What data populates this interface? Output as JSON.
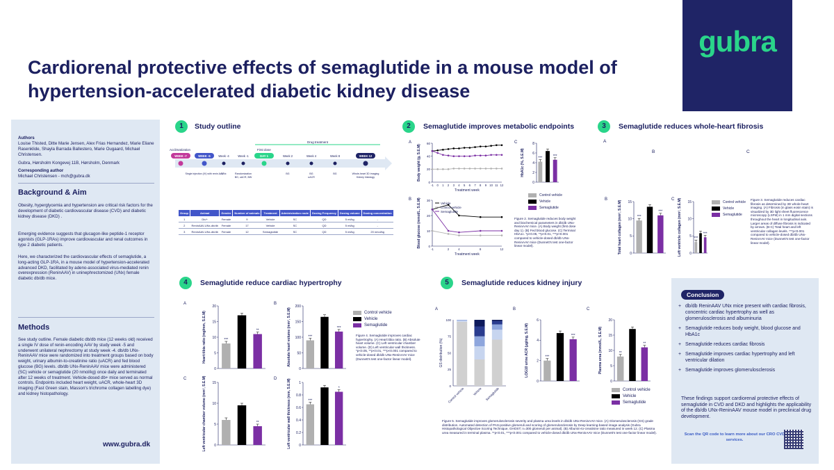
{
  "poster": {
    "title_line1": "Cardiorenal protective effects of semaglutide in a mouse model of",
    "title_line2": "hypertension-accelerated diabetic kidney disease",
    "logo": "gubra",
    "url": "www.gubra.dk"
  },
  "sidebar": {
    "authors_heading": "Authors",
    "authors": "Louise Thisted, Ditte Marie Jensen, Alex Frias Hernandez, Marie Eliane Rasenklide, Shayla Barrada Ballestero, Marie Ougaard, Michael Christensen.",
    "affiliation": "Gubra, Hørsholm Kongevej 11B, Hørsholm, Denmark",
    "corresponding_heading": "Corresponding author",
    "corresponding": "Michael Christensen - mch@gubra.dk",
    "background_heading": "Background & Aim",
    "background_p1": "Obesity, hyperglycemia and hypertension are critical risk factors for the development of diabetic cardiovascular disease (CVD) and diabetic kidney disease (DKD) .",
    "background_p2": "Emerging evidence suggests that glucagon-like peptide-1 receptor agonists (GLP-1RAs) improve cardiovascular and renal outcomes in type 2 diabetic patients.",
    "background_p3": "Here, we characterized the cardiovascular effects of semaglutide, a long-acting GLP-1RA, in a mouse model of hypertension-accelerated advanced DKD, facilitated by adeno-associated virus-mediated renin overexpression (ReninAAV) in uninephrectomized (UNx) female diabetic db/db mice.",
    "methods_heading": "Methods",
    "methods_p": "See study outline. Female diabetic db/db mice (12 weeks old) received a single IV dose of renin-encoding AAV by study week -5 and underwent unilateral nephrectomy at study week -4. db/db UNx-ReninAAV mice were randomized into treatment groups based on body weight, urinary albumin-to-creatinine ratio (uACR) and fed blood glucose (BG) levels. db/db UNx-ReninAAV mice were administered (SC) vehicle or semaglutide (20 nmol/kg) once daily and terminated after 12 weeks of treatment. Vehicle-dosed db+ mice served as normal controls. Endpoints included heart weight, uACR, whole-heart 3D imaging (Fast Green stain, Masson's trichrome collagen labelling dye) and kidney histopathology."
  },
  "sections": [
    {
      "num": "1",
      "title": "Study outline"
    },
    {
      "num": "2",
      "title": "Semaglutide improves metabolic endpoints"
    },
    {
      "num": "3",
      "title": "Semaglutide reduces whole-heart fibrosis"
    },
    {
      "num": "4",
      "title": "Semaglutide reduce cardiac hypertrophy"
    },
    {
      "num": "5",
      "title": "Semaglutide reduces kidney injury"
    }
  ],
  "outline": {
    "acclimatization": "Acclimatization",
    "drug_treatment": "Drug treatment",
    "first_dose": "First dose",
    "nodes": [
      "WEEK -7",
      "WEEK -5",
      "Week -4",
      "Week -1",
      "DAY 1",
      "Week 2",
      "Week 4",
      "Week 8",
      "WEEK 12"
    ],
    "node_notes": [
      "",
      "Single injection (IV) with renin AAV",
      "UNx",
      "Randomization\nBG, uACR, BW",
      "",
      "BG",
      "BG\nuACR",
      "BG",
      "Whole-heart 3D imaging\nKidney histology"
    ]
  },
  "group_table": {
    "headers": [
      "Group",
      "Animal",
      "Gender",
      "Number of animals",
      "Treatment",
      "Administration route",
      "Dosing Frequency",
      "Dosing volume",
      "Dosing concentration"
    ],
    "rows": [
      [
        "1",
        "Db/+",
        "Female",
        "9",
        "Vehicle",
        "SC",
        "QD",
        "5 ml/kg",
        "-"
      ],
      [
        "2",
        "ReninAAV-UNx-db/db",
        "Female",
        "17",
        "Vehicle",
        "SC",
        "QD",
        "5 ml/kg",
        "-"
      ],
      [
        "3",
        "ReninAAV-UNx-db/db",
        "Female",
        "12",
        "Semaglutide",
        "SC",
        "QD",
        "5 ml/kg",
        "20 nmol/kg"
      ]
    ]
  },
  "legend": {
    "control": "Control vehicle",
    "vehicle": "Vehicle",
    "semaglutide": "Semaglutide"
  },
  "colors": {
    "control": "#b0b0b0",
    "vehicle": "#000000",
    "semaglutide": "#7b2fa4",
    "accent": "#2ad58a",
    "navy": "#1f2466"
  },
  "chart_data": [
    {
      "type": "line",
      "panel": "2A",
      "ylabel": "Body weight (g, S.E.M)",
      "xlabel": "Treatment week",
      "x": [
        -1,
        0,
        1,
        2,
        3,
        4,
        5,
        6,
        7,
        8,
        9,
        10,
        11,
        12
      ],
      "ylim": [
        0,
        60
      ],
      "series": [
        {
          "name": "Vehicle",
          "values": [
            48,
            49,
            50,
            51,
            52,
            52,
            53,
            53,
            54,
            55,
            55,
            56,
            57,
            57
          ]
        },
        {
          "name": "Control vehicle",
          "values": [
            20,
            20,
            20,
            20,
            21,
            21,
            21,
            21,
            21,
            21,
            21,
            21,
            21,
            21
          ]
        },
        {
          "name": "Semaglutide",
          "values": [
            48,
            45,
            42,
            41,
            40,
            40,
            40,
            40,
            41,
            41,
            41,
            42,
            42,
            42
          ]
        }
      ]
    },
    {
      "type": "bar",
      "panel": "2C",
      "ylabel": "HbA1c (%, S.E.M)",
      "ylim": [
        0,
        8
      ],
      "categories": [
        "Control vehicle",
        "Vehicle",
        "Semaglutide"
      ],
      "values": [
        4.2,
        6.4,
        4.6
      ],
      "labels": [
        "***",
        "",
        "***"
      ]
    },
    {
      "type": "line",
      "panel": "2B",
      "ylabel": "Blood glucose (mmol/L, S.E.M)",
      "xlabel": "Treatment week",
      "x": [
        -1,
        2,
        4,
        8,
        12
      ],
      "ylim": [
        0,
        30
      ],
      "series": [
        {
          "name": "Vehicle",
          "values": [
            24,
            27,
            20,
            19,
            19
          ]
        },
        {
          "name": "Control vehicle",
          "values": [
            10,
            8,
            7,
            7,
            7
          ]
        },
        {
          "name": "Semaglutide",
          "values": [
            24,
            10,
            9,
            10,
            10
          ]
        }
      ]
    },
    {
      "type": "bar",
      "panel": "3B",
      "ylabel": "Total heart collagen (mm³, S.E.M)",
      "ylim": [
        0,
        15
      ],
      "categories": [
        "Control vehicle",
        "Vehicle",
        "Semaglutide"
      ],
      "values": [
        9.5,
        13.5,
        11
      ],
      "labels": [
        "***",
        "",
        "***"
      ]
    },
    {
      "type": "bar",
      "panel": "3C",
      "ylabel": "Left ventricle collagen (mm³, S.E.M)",
      "ylim": [
        0,
        15
      ],
      "categories": [
        "Control vehicle",
        "Vehicle",
        "Semaglutide"
      ],
      "values": [
        3.2,
        5.8,
        4.6
      ],
      "labels": [
        "***",
        "",
        "***"
      ]
    },
    {
      "type": "bar",
      "panel": "4A",
      "ylabel": "Heart:tibia ratio (mg/mm, S.E.M)",
      "ylim": [
        0,
        20
      ],
      "categories": [
        "Control vehicle",
        "Vehicle",
        "Semaglutide"
      ],
      "values": [
        8,
        17,
        11
      ],
      "labels": [
        "***",
        "",
        "**"
      ]
    },
    {
      "type": "bar",
      "panel": "4B",
      "ylabel": "Absolute heart volume (mm³, S.E.M)",
      "ylim": [
        0,
        200
      ],
      "categories": [
        "Control vehicle",
        "Vehicle",
        "Semaglutide"
      ],
      "values": [
        90,
        165,
        118
      ],
      "labels": [
        "***",
        "",
        "***"
      ]
    },
    {
      "type": "bar",
      "panel": "4C",
      "ylabel": "Left ventricular chamber volume (mm³, S.E.M)",
      "ylim": [
        0,
        15
      ],
      "categories": [
        "Control vehicle",
        "Vehicle",
        "Semaglutide"
      ],
      "values": [
        6,
        9.5,
        4.5
      ],
      "labels": [
        "",
        "",
        "**"
      ]
    },
    {
      "type": "bar",
      "panel": "4D",
      "ylabel": "Left ventricular wall thickness (mm, S.E.M)",
      "ylim": [
        0,
        1.0
      ],
      "categories": [
        "Control vehicle",
        "Vehicle",
        "Semaglutide"
      ],
      "values": [
        0.65,
        0.92,
        0.85
      ],
      "labels": [
        "***",
        "",
        "*"
      ]
    },
    {
      "type": "bar",
      "panel": "5A",
      "ylabel": "GS distribution (%)",
      "ylim": [
        0,
        100
      ],
      "stacked": true,
      "categories": [
        "Control vehicle",
        "Vehicle",
        "Semaglutide"
      ],
      "series": [
        {
          "name": "grade 0",
          "values": [
            97,
            40,
            70
          ]
        },
        {
          "name": "grade 1",
          "values": [
            2,
            20,
            15
          ]
        },
        {
          "name": "grade 2",
          "values": [
            1,
            15,
            8
          ]
        },
        {
          "name": "grade 3",
          "values": [
            0,
            15,
            5
          ]
        },
        {
          "name": "grade 4",
          "values": [
            0,
            10,
            2
          ]
        }
      ]
    },
    {
      "type": "bar",
      "panel": "5B",
      "ylabel": "LOG10 urine ACR (µg/mg, S.E.M)",
      "ylim": [
        0,
        6
      ],
      "categories": [
        "Control vehicle",
        "Vehicle",
        "Semaglutide"
      ],
      "values": [
        2,
        4.7,
        4.1
      ],
      "labels": [
        "***",
        "",
        "***"
      ]
    },
    {
      "type": "bar",
      "panel": "5C",
      "ylabel": "Plasma urea (mmol/L, S.E.M)",
      "ylim": [
        0,
        20
      ],
      "categories": [
        "Control vehicle",
        "Vehicle",
        "Semaglutide"
      ],
      "values": [
        8,
        17,
        11
      ],
      "labels": [
        "**",
        "",
        "**"
      ]
    }
  ],
  "captions": {
    "fig2": "Figure 2. Semaglutide reduces body weight and biochemical parameters in db/db UNx-ReninAAV mice. (A) Body weight (first dose day 1). (B) Fed blood glucose. (C) Terminal HbA1c. *p<0.05, **p<0.01, ***p<0.001 compared to vehicle-dosed db/db UNx-ReninAAV mice (Dunnett's test one-factor linear model).",
    "fig3": "Figure 3. Semaglutide reduces cardiac fibrosis as determined by 3D whole-heart imaging. (A) Fibrosis (in glass eosin stain) is visualized by 3D light sheet fluorescence microscopy (LSFM) in 1 mm digital sections throughout the heart in longitudinal axis. Larger areas of diffuse fibrosis is indicated by arrows. (B-C) Total heart and left ventricular collagen levels. ***p<0.001 compared to vehicle-dosed db/db UNx-ReninAAV mice (Dunnett's test one-factor linear model).",
    "fig4": "Figure 4. Semaglutide improves cardiac hypertrophy. (A) Heart:tibia ratio. (B) Absolute heart volume. (C) Left ventricular chamber volume. (D) Left ventricular wall thickness. *p<0.05, **p<0.01, ***p<0.001 compared to vehicle-dosed db/db UNx-ReninAAV mice (Dunnett's test one-factor linear model).",
    "fig5": "Figure 5. Semaglutide improves glomerulosclerosis severity and plasma urea levels in db/db UNx-ReninAAV mice. (A) Glomerulosclerosis (GS) grade distribution. Automated detection of PAS-positive glomeruli and scoring of glomerulosclerosis by Deep learning-based image analysis (Gubra Histopathological Objective Scoring Technique, GHOST; n=300 glomeruli per animal). (B) Albumin-to-creatinine ratio measured in week 12. (C) Plasma urea measured in terminal plasma. **p<0.01, ***p<0.001 compared to vehicle-dosed db/db UNx-ReninAAV mice (Dunnett's test one-factor linear model)."
  },
  "conclusion": {
    "badge": "Conclusion",
    "items": [
      "db/db ReninAAV UNx mice present with cardiac fibrosis, concentric cardiac hypertrophy as well as glomerulosclerosis and albuminuria",
      "Semaglutide reduces body weight, blood glucose and HbA1c",
      "Semaglutide reduces cardiac fibrosis",
      "Semaglutide improves cardiac hypertrophy and left ventricular dilation",
      "Semaglutide improves glomerulosclerosis"
    ],
    "summary": "These findings support cardiorenal protective effects of semaglutide in CVD and DKD and highlights the applicability of the db/db UNx-ReninAAV mouse model in preclinical drug development.",
    "qr_text": "Scan the QR code to learn more about our CRO CVD services."
  }
}
